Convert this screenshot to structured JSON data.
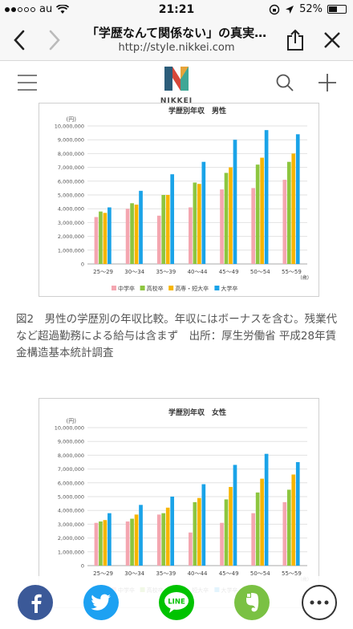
{
  "status": {
    "carrier": "au",
    "time": "21:21",
    "battery": "52%",
    "battery_level": 0.52
  },
  "browser": {
    "title": "「学歴なんて関係ない」の真実…",
    "url": "http://style.nikkei.com"
  },
  "site": {
    "logo_text": "NIKKEI STYLE"
  },
  "chart_data": [
    {
      "type": "bar",
      "title": "学歴別年収　男性",
      "ylabel": "(円)",
      "xunit": "(歳)",
      "categories": [
        "25～29",
        "30～34",
        "35～39",
        "40～44",
        "45～49",
        "50～54",
        "55～59"
      ],
      "yticks": [
        "0",
        "1,000,000",
        "2,000,000",
        "3,000,000",
        "4,000,000",
        "5,000,000",
        "6,000,000",
        "7,000,000",
        "8,000,000",
        "9,000,000",
        "10,000,000"
      ],
      "ylim": [
        0,
        10000000
      ],
      "legend_position": "bottom",
      "series": [
        {
          "name": "中学卒",
          "color": "#f4a6b0",
          "values": [
            3400000,
            4000000,
            3500000,
            4100000,
            5400000,
            5500000,
            6100000
          ]
        },
        {
          "name": "高校卒",
          "color": "#8dc63f",
          "values": [
            3800000,
            4400000,
            5000000,
            5900000,
            6600000,
            7200000,
            7400000
          ]
        },
        {
          "name": "高専・短大卒",
          "color": "#f7b500",
          "values": [
            3700000,
            4300000,
            5000000,
            5800000,
            7000000,
            7700000,
            8000000
          ]
        },
        {
          "name": "大学卒",
          "color": "#1aa3e8",
          "values": [
            4100000,
            5300000,
            6500000,
            7400000,
            9000000,
            9700000,
            9400000
          ]
        }
      ]
    },
    {
      "type": "bar",
      "title": "学歴別年収　女性",
      "ylabel": "(円)",
      "xunit": "(歳)",
      "categories": [
        "25～29",
        "30～34",
        "35～39",
        "40～44",
        "45～49",
        "50～54",
        "55～59"
      ],
      "yticks": [
        "0",
        "1,000,000",
        "2,000,000",
        "3,000,000",
        "4,000,000",
        "5,000,000",
        "6,000,000",
        "7,000,000",
        "8,000,000",
        "9,000,000",
        "10,000,000"
      ],
      "ylim": [
        0,
        10000000
      ],
      "legend_position": "bottom",
      "series": [
        {
          "name": "中学卒",
          "color": "#f4a6b0",
          "values": [
            3100000,
            3200000,
            3700000,
            2400000,
            3100000,
            3800000,
            4600000
          ]
        },
        {
          "name": "高校卒",
          "color": "#8dc63f",
          "values": [
            3200000,
            3400000,
            3800000,
            4600000,
            4800000,
            5300000,
            5500000
          ]
        },
        {
          "name": "高専・短大卒",
          "color": "#f7b500",
          "values": [
            3300000,
            3700000,
            4200000,
            4900000,
            5700000,
            6300000,
            6600000
          ]
        },
        {
          "name": "大学卒",
          "color": "#1aa3e8",
          "values": [
            3800000,
            4400000,
            5000000,
            5900000,
            7300000,
            8100000,
            7500000
          ]
        }
      ]
    }
  ],
  "caption": "図2　男性の学歴別の年収比較。年収にはボーナスを含む。残業代など超過勤務による給与は含まず　出所：厚生労働省 平成28年賃金構造基本統計調査",
  "share": {
    "line_label": "LINE",
    "colors": {
      "facebook": "#3b5998",
      "twitter": "#1da1f2",
      "line": "#00c300",
      "evernote": "#7ac143"
    }
  }
}
